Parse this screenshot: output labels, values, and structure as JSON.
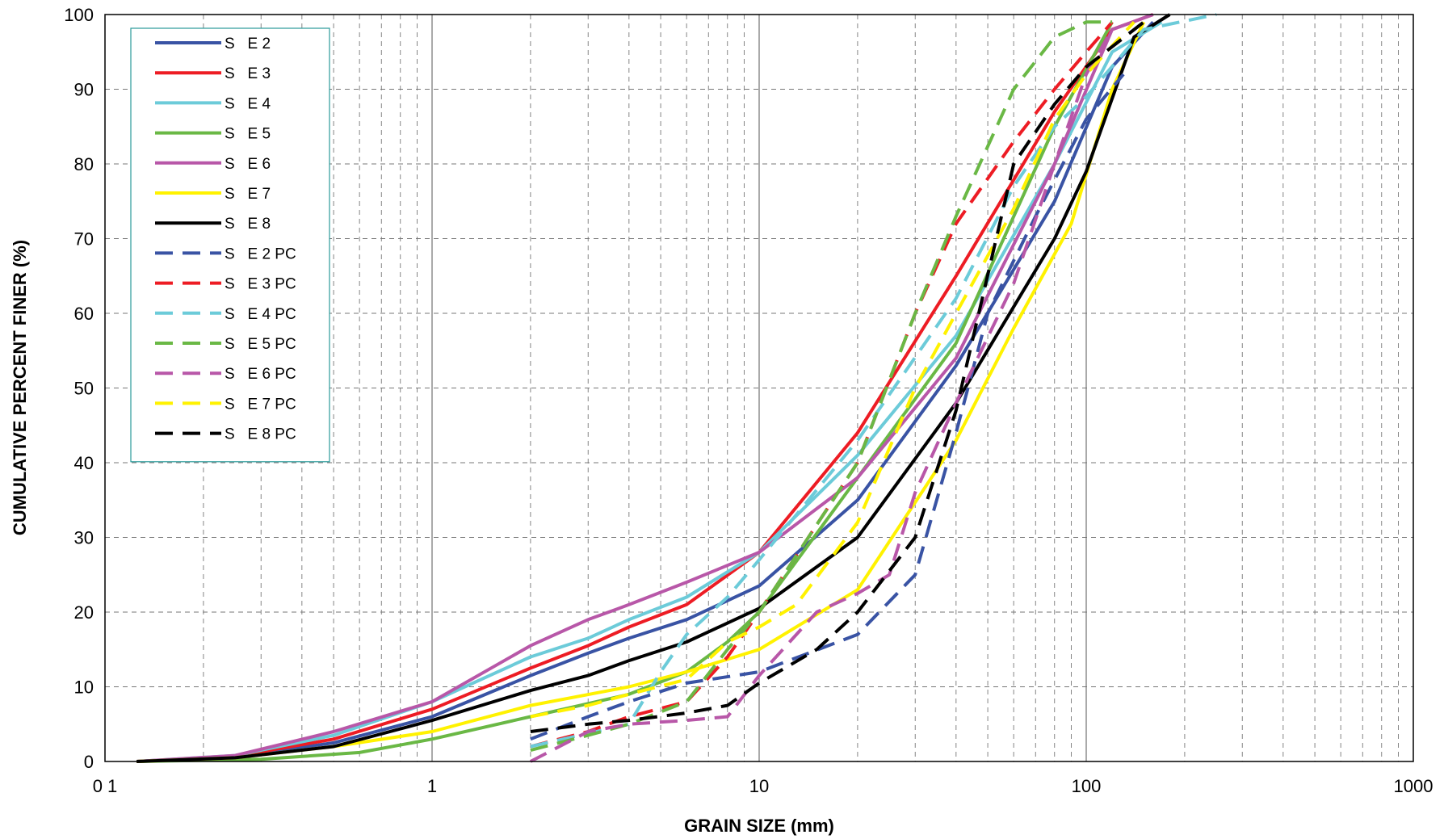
{
  "chart_data": {
    "type": "line",
    "xscale": "log",
    "xlim": [
      0.1,
      1000
    ],
    "ylim": [
      0,
      100
    ],
    "xlabel": "GRAIN SIZE (mm)",
    "ylabel": "CUMULATIVE PERCENT FINER (%)",
    "x_ticks": [
      {
        "value": 0.1,
        "label": "0 1"
      },
      {
        "value": 1,
        "label": "1"
      },
      {
        "value": 10,
        "label": "10"
      },
      {
        "value": 100,
        "label": "100"
      },
      {
        "value": 1000,
        "label": "1000"
      }
    ],
    "y_ticks": [
      0,
      10,
      20,
      30,
      40,
      50,
      60,
      70,
      80,
      90,
      100
    ],
    "grid": true,
    "legend_position": "top-left",
    "series": [
      {
        "name": "S   E 2",
        "color": "#3953a4",
        "dash": false,
        "x": [
          0.125,
          0.25,
          0.5,
          1,
          2,
          3,
          4,
          6,
          10,
          20,
          40,
          80,
          120,
          160
        ],
        "y": [
          0,
          0.6,
          2.5,
          6,
          11.5,
          14.5,
          16.5,
          19,
          23.5,
          35,
          53,
          75,
          93,
          99
        ]
      },
      {
        "name": "S   E 3",
        "color": "#ed1c24",
        "dash": false,
        "x": [
          0.125,
          0.25,
          0.5,
          1,
          2,
          3,
          4,
          6,
          10,
          20,
          40,
          80,
          120,
          160
        ],
        "y": [
          0,
          0.7,
          3,
          7,
          12.5,
          15.5,
          18,
          21,
          28,
          44,
          65,
          87,
          98,
          100
        ]
      },
      {
        "name": "S   E 4",
        "color": "#6ccbd9",
        "dash": false,
        "x": [
          0.125,
          0.25,
          0.5,
          1,
          2,
          3,
          4,
          6,
          10,
          20,
          40,
          80,
          120,
          170
        ],
        "y": [
          0,
          0.8,
          3.5,
          8,
          14,
          16.5,
          19,
          22,
          28,
          41,
          57,
          80,
          95,
          99
        ]
      },
      {
        "name": "S   E 5",
        "color": "#6ab845",
        "dash": false,
        "x": [
          0.125,
          0.3,
          0.6,
          1,
          2,
          4,
          6,
          8,
          10,
          20,
          40,
          80,
          120
        ],
        "y": [
          0,
          0.3,
          1.2,
          3,
          6,
          9,
          12,
          16,
          20,
          38,
          56,
          85,
          99
        ]
      },
      {
        "name": "S   E 6",
        "color": "#b857a8",
        "dash": false,
        "x": [
          0.125,
          0.25,
          0.5,
          1,
          2,
          3,
          4,
          6,
          10,
          20,
          40,
          80,
          120,
          160
        ],
        "y": [
          0,
          0.8,
          4,
          8,
          15.5,
          19,
          21,
          24,
          28,
          38,
          54,
          80,
          98,
          100
        ]
      },
      {
        "name": "S   E 7",
        "color": "#fff200",
        "dash": false,
        "x": [
          0.125,
          0.25,
          0.5,
          1,
          2,
          4,
          6,
          10,
          20,
          40,
          60,
          90,
          120,
          150
        ],
        "y": [
          0,
          0.5,
          2,
          4,
          7.5,
          10,
          12,
          15,
          23,
          43,
          58,
          72,
          90,
          99
        ]
      },
      {
        "name": "S   E 8",
        "color": "#000000",
        "dash": false,
        "x": [
          0.125,
          0.25,
          0.5,
          1,
          2,
          3,
          4,
          6,
          10,
          20,
          40,
          80,
          100,
          140,
          180
        ],
        "y": [
          0,
          0.5,
          2,
          5.5,
          9.5,
          11.5,
          13.5,
          16,
          20.5,
          30,
          48,
          70,
          79,
          97,
          100
        ]
      },
      {
        "name": "S   E 2 PC",
        "color": "#3953a4",
        "dash": true,
        "x": [
          2,
          3,
          4,
          6,
          10,
          20,
          30,
          40,
          50,
          70,
          100,
          130
        ],
        "y": [
          3,
          6,
          8,
          10.5,
          12,
          17,
          25,
          44,
          60,
          73,
          86,
          92
        ]
      },
      {
        "name": "S   E 3 PC",
        "color": "#ed1c24",
        "dash": true,
        "x": [
          2,
          3,
          4,
          6,
          8,
          10,
          20,
          30,
          40,
          60,
          80,
          100,
          120
        ],
        "y": [
          2,
          4,
          6,
          8,
          14,
          20,
          40,
          60,
          72,
          83,
          90,
          95,
          99
        ]
      },
      {
        "name": "S   E 4 PC",
        "color": "#6ccbd9",
        "dash": true,
        "x": [
          2,
          4,
          5,
          6,
          8,
          10,
          20,
          40,
          60,
          80,
          100,
          150,
          250
        ],
        "y": [
          2,
          5,
          12,
          17,
          22,
          27,
          43,
          62,
          77,
          85,
          89,
          98,
          100
        ]
      },
      {
        "name": "S   E 5 PC",
        "color": "#6ab845",
        "dash": true,
        "x": [
          2,
          3,
          4,
          6,
          8,
          10,
          20,
          30,
          40,
          60,
          80,
          100,
          120
        ],
        "y": [
          1.5,
          3.5,
          5,
          8,
          15,
          20,
          40,
          60,
          73,
          90,
          97,
          99,
          99
        ]
      },
      {
        "name": "S   E 6 PC",
        "color": "#b857a8",
        "dash": true,
        "x": [
          2,
          3,
          4,
          6,
          8,
          10,
          15,
          20,
          25,
          30,
          40,
          60,
          80,
          100,
          120
        ],
        "y": [
          0,
          4,
          5,
          5.5,
          6,
          11.5,
          20,
          22.5,
          25,
          36,
          48,
          64,
          80,
          92,
          98
        ]
      },
      {
        "name": "S   E 7 PC",
        "color": "#fff200",
        "dash": true,
        "x": [
          2,
          3,
          4,
          6,
          8,
          10,
          13,
          20,
          30,
          40,
          60,
          80,
          100,
          140
        ],
        "y": [
          6,
          7.5,
          9,
          11,
          16,
          18,
          21,
          32,
          50,
          60,
          74,
          86,
          92,
          99
        ]
      },
      {
        "name": "S   E 8 PC",
        "color": "#000000",
        "dash": true,
        "x": [
          2,
          3,
          4,
          6,
          8,
          10,
          15,
          20,
          30,
          40,
          60,
          80,
          100,
          150
        ],
        "y": [
          4,
          5,
          5.5,
          6.5,
          7.5,
          10.5,
          15,
          20,
          30,
          47,
          80,
          88,
          93,
          99
        ]
      }
    ]
  }
}
